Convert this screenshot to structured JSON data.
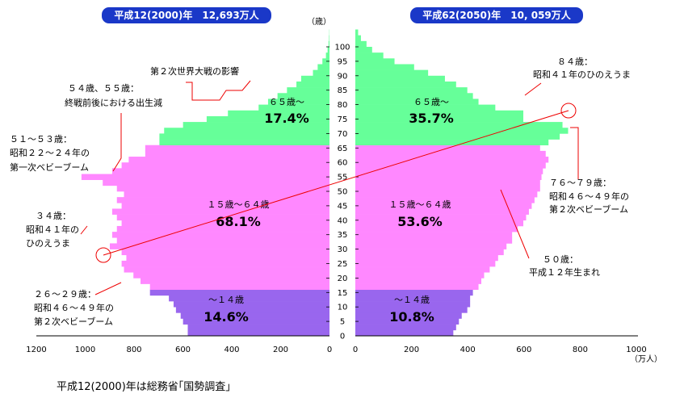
{
  "header_left": "平成12(2000)年　12,693万人",
  "header_right": "平成62(2050)年　10, 059万人",
  "footer": "平成12(2000)年は総務省｢国勢調査｣",
  "colors": {
    "elderly": "#66ff99",
    "working": "#ff88ff",
    "young": "#9966ee",
    "annotation": "#ee0000",
    "header_bg": "#1a38c8"
  },
  "chart_data": {
    "type": "bar",
    "orientation": "horizontal",
    "layout": "population-pyramid",
    "y_label": "（歳）",
    "x_unit": "（万人）",
    "age_ticks": [
      "0",
      "5",
      "10",
      "15",
      "20",
      "25",
      "30",
      "35",
      "40",
      "45",
      "50",
      "55",
      "60",
      "65",
      "70",
      "75",
      "80",
      "85",
      "90",
      "95",
      "100"
    ],
    "left_ticks": [
      "1200",
      "1000",
      "800",
      "600",
      "400",
      "200",
      "0"
    ],
    "right_ticks": [
      "0",
      "200",
      "400",
      "600",
      "800",
      "1000"
    ],
    "left_xlim": [
      0,
      1200
    ],
    "right_xlim": [
      0,
      1000
    ],
    "age_bands": [
      "0-1",
      "2-3",
      "4-5",
      "6-7",
      "8-9",
      "10-11",
      "12-13",
      "14-15",
      "16-17",
      "18-19",
      "20-21",
      "22-23",
      "24-25",
      "26-27",
      "28-29",
      "30-31",
      "32-33",
      "34-35",
      "36-37",
      "38-39",
      "40-41",
      "42-43",
      "44-45",
      "46-47",
      "48-49",
      "50-51",
      "52-53",
      "54-55",
      "56-57",
      "58-59",
      "60-61",
      "62-63",
      "64-65",
      "66-67",
      "68-69",
      "70-71",
      "72-73",
      "74-75",
      "76-77",
      "78-79",
      "80-81",
      "82-83",
      "84-85",
      "86-87",
      "88-89",
      "90-91",
      "92-93",
      "94-95",
      "96-97",
      "98-99",
      "100-101",
      "102-103",
      "104-105"
    ],
    "series": [
      {
        "name": "平成12(2000)年",
        "values": [
          600,
          600,
          620,
          630,
          650,
          660,
          680,
          760,
          760,
          800,
          830,
          870,
          880,
          860,
          880,
          930,
          900,
          920,
          900,
          880,
          900,
          920,
          880,
          900,
          870,
          900,
          960,
          1050,
          920,
          880,
          850,
          780,
          780,
          720,
          720,
          700,
          620,
          520,
          430,
          300,
          260,
          220,
          180,
          140,
          120,
          70,
          50,
          30,
          15,
          8,
          4,
          2,
          1
        ]
      },
      {
        "name": "平成62(2050)年",
        "values": [
          350,
          360,
          370,
          380,
          400,
          410,
          410,
          420,
          440,
          450,
          460,
          480,
          500,
          510,
          530,
          540,
          560,
          560,
          580,
          600,
          610,
          620,
          630,
          640,
          650,
          660,
          660,
          665,
          670,
          680,
          690,
          680,
          660,
          690,
          730,
          760,
          740,
          600,
          600,
          500,
          440,
          420,
          400,
          360,
          320,
          260,
          210,
          140,
          100,
          60,
          40,
          20,
          10
        ]
      }
    ],
    "annotations": [
      {
        "text": "第２次世界大戦の影響"
      },
      {
        "text": "５４歳、５５歳："
      },
      {
        "text": "終戦前後における出生減"
      },
      {
        "text": "５１～５３歳："
      },
      {
        "text": "昭和２２～２４年の"
      },
      {
        "text": "第一次ベビーブーム"
      },
      {
        "text": "３４歳："
      },
      {
        "text": "昭和４１年の"
      },
      {
        "text": "ひのえうま"
      },
      {
        "text": "２６～２９歳："
      },
      {
        "text": "昭和４６～４９年の"
      },
      {
        "text": "第２次ベビーブーム"
      },
      {
        "text": "８４歳："
      },
      {
        "text": "昭和４１年のひのえうま"
      },
      {
        "text": "７６～７９歳："
      },
      {
        "text": "昭和４６～４９年の"
      },
      {
        "text": "第２次ベビーブーム"
      },
      {
        "text": "５０歳："
      },
      {
        "text": "平成１２年生まれ"
      }
    ],
    "group_labels": [
      {
        "text": "６５歳～",
        "value": "17.4%",
        "side": "left"
      },
      {
        "text": "１５歳～６４歳",
        "value": "68.1%",
        "side": "left"
      },
      {
        "text": "～１４歳",
        "value": "14.6%",
        "side": "left"
      },
      {
        "text": "６５歳～",
        "value": "35.7%",
        "side": "right"
      },
      {
        "text": "１５歳～６４歳",
        "value": "53.6%",
        "side": "right"
      },
      {
        "text": "～１４歳",
        "value": "10.8%",
        "side": "right"
      }
    ]
  }
}
